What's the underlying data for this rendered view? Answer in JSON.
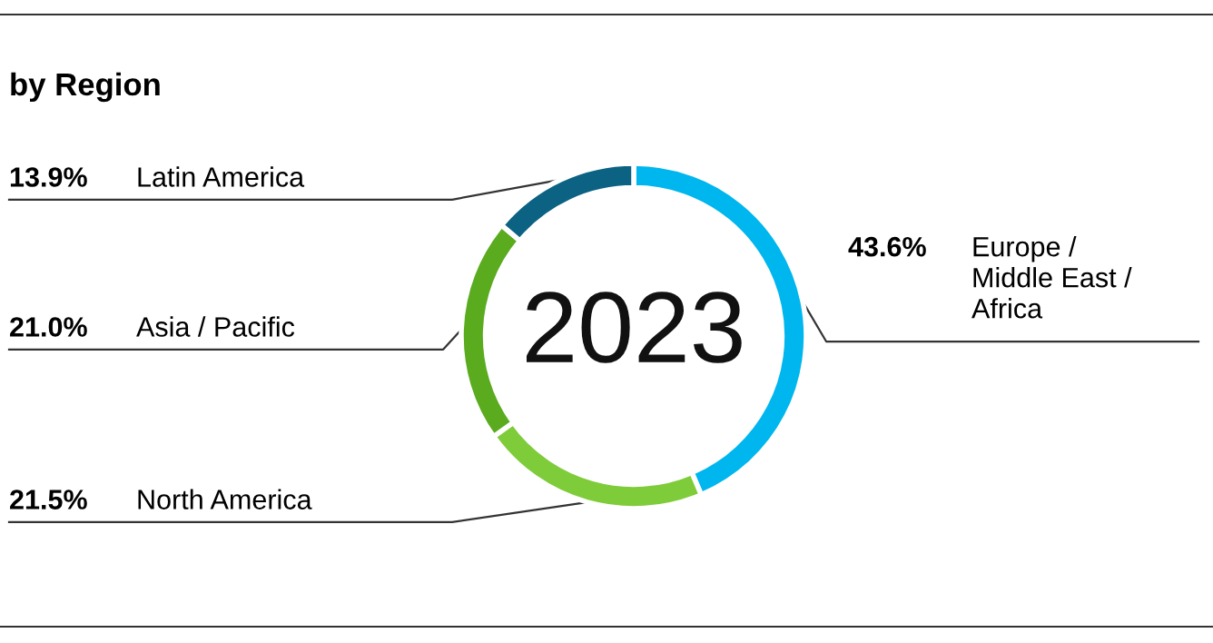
{
  "chart_data": {
    "type": "donut",
    "title": "by Region",
    "categories": [
      "Europe / Middle East / Africa",
      "North America",
      "Asia / Pacific",
      "Latin America"
    ],
    "values": [
      43.6,
      21.5,
      21.0,
      13.9
    ],
    "colors": [
      "#00b6ee",
      "#7fcc3a",
      "#5aab1e",
      "#0b6282"
    ],
    "value_labels": [
      "43.6%",
      "21.5%",
      "21.0%",
      "13.9%"
    ],
    "annotations": [
      "2023"
    ],
    "legend": false
  }
}
